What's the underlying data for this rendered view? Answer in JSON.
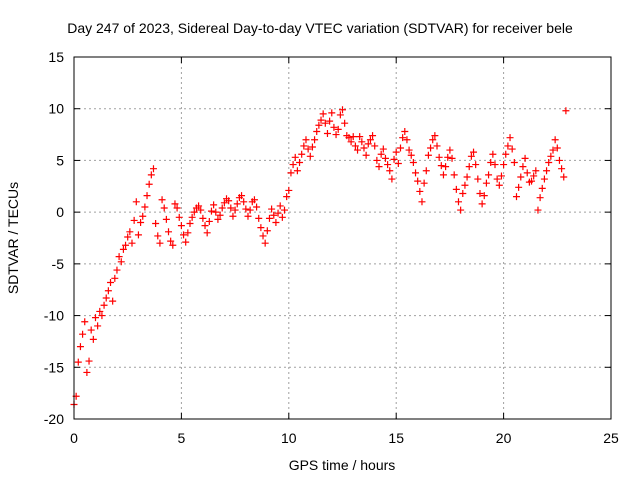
{
  "chart_data": {
    "type": "scatter",
    "title": "Day 247 of 2023, Sidereal Day-to-day VTEC variation (SDTVAR) for receiver bele",
    "xlabel": "GPS time / hours",
    "ylabel": "SDTVAR / TECUs",
    "xlim": [
      0,
      25
    ],
    "ylim": [
      -20,
      15
    ],
    "xticks": [
      0,
      5,
      10,
      15,
      20,
      25
    ],
    "yticks": [
      -20,
      -15,
      -10,
      -5,
      0,
      5,
      10,
      15
    ],
    "xtick_labels": [
      "0",
      "5",
      "10",
      "15",
      "20",
      "25"
    ],
    "ytick_labels": [
      "-20",
      "-15",
      "-10",
      "-5",
      "0",
      "5",
      "10",
      "15"
    ],
    "grid": true,
    "marker": "+",
    "color": "#ff0000",
    "series": [
      {
        "name": "SDTVAR",
        "x": [
          0.0,
          0.1,
          0.2,
          0.3,
          0.4,
          0.5,
          0.6,
          0.7,
          0.8,
          0.9,
          1.0,
          1.1,
          1.2,
          1.3,
          1.4,
          1.5,
          1.6,
          1.7,
          1.8,
          1.9,
          2.0,
          2.1,
          2.2,
          2.3,
          2.4,
          2.5,
          2.6,
          2.7,
          2.8,
          2.9,
          3.0,
          3.1,
          3.2,
          3.3,
          3.4,
          3.5,
          3.6,
          3.7,
          3.8,
          3.9,
          4.0,
          4.1,
          4.2,
          4.3,
          4.4,
          4.5,
          4.6,
          4.7,
          4.8,
          4.9,
          5.0,
          5.1,
          5.2,
          5.3,
          5.4,
          5.5,
          5.6,
          5.7,
          5.8,
          5.9,
          6.0,
          6.1,
          6.2,
          6.3,
          6.4,
          6.5,
          6.6,
          6.7,
          6.8,
          6.9,
          7.0,
          7.1,
          7.2,
          7.3,
          7.4,
          7.5,
          7.6,
          7.7,
          7.8,
          7.9,
          8.0,
          8.1,
          8.2,
          8.3,
          8.4,
          8.5,
          8.6,
          8.7,
          8.8,
          8.9,
          9.0,
          9.1,
          9.2,
          9.3,
          9.4,
          9.5,
          9.6,
          9.7,
          9.8,
          9.9,
          10.0,
          10.1,
          10.2,
          10.3,
          10.4,
          10.5,
          10.6,
          10.7,
          10.8,
          10.9,
          11.0,
          11.1,
          11.2,
          11.3,
          11.4,
          11.5,
          11.6,
          11.7,
          11.8,
          11.9,
          12.0,
          12.1,
          12.2,
          12.3,
          12.4,
          12.5,
          12.6,
          12.7,
          12.8,
          12.9,
          13.0,
          13.1,
          13.2,
          13.3,
          13.4,
          13.5,
          13.6,
          13.7,
          13.8,
          13.9,
          14.0,
          14.1,
          14.2,
          14.3,
          14.4,
          14.5,
          14.6,
          14.7,
          14.8,
          14.9,
          15.0,
          15.1,
          15.2,
          15.3,
          15.4,
          15.5,
          15.6,
          15.7,
          15.8,
          15.9,
          16.0,
          16.1,
          16.2,
          16.3,
          16.4,
          16.5,
          16.6,
          16.7,
          16.8,
          16.9,
          17.0,
          17.1,
          17.2,
          17.3,
          17.4,
          17.5,
          17.6,
          17.7,
          17.8,
          17.9,
          18.0,
          18.1,
          18.2,
          18.3,
          18.4,
          18.5,
          18.6,
          18.7,
          18.8,
          18.9,
          19.0,
          19.1,
          19.2,
          19.3,
          19.4,
          19.5,
          19.6,
          19.7,
          19.8,
          19.9,
          20.0,
          20.1,
          20.2,
          20.3,
          20.4,
          20.5,
          20.6,
          20.7,
          20.8,
          20.9,
          21.0,
          21.1,
          21.2,
          21.3,
          21.4,
          21.5,
          21.6,
          21.7,
          21.8,
          21.9,
          22.0,
          22.1,
          22.2,
          22.3,
          22.4,
          22.5,
          22.6,
          22.7,
          22.8,
          22.9
        ],
        "y": [
          -18.6,
          -17.8,
          -14.5,
          -13.0,
          -11.8,
          -10.6,
          -15.5,
          -14.4,
          -11.4,
          -12.3,
          -10.2,
          -11.0,
          -9.6,
          -10.0,
          -9.0,
          -8.3,
          -7.6,
          -6.8,
          -8.6,
          -6.4,
          -5.6,
          -4.3,
          -4.8,
          -3.6,
          -3.2,
          -2.4,
          -1.9,
          -3.0,
          -0.8,
          1.0,
          -2.2,
          -1.0,
          -0.4,
          0.5,
          1.6,
          2.7,
          3.6,
          4.2,
          -1.1,
          -2.3,
          -3.0,
          1.2,
          0.4,
          -0.7,
          -1.9,
          -2.8,
          -3.2,
          0.8,
          0.4,
          -0.5,
          -1.3,
          -2.2,
          -2.9,
          -2.0,
          -1.1,
          -0.5,
          0.0,
          0.4,
          0.6,
          0.2,
          -0.6,
          -1.3,
          -2.0,
          -0.9,
          0.1,
          0.7,
          0.0,
          -0.7,
          -0.3,
          0.4,
          0.9,
          1.3,
          1.1,
          0.4,
          -0.4,
          0.2,
          0.8,
          1.4,
          1.6,
          1.0,
          0.3,
          -0.4,
          0.2,
          1.0,
          1.2,
          0.5,
          -0.6,
          -1.5,
          -2.3,
          -3.0,
          -1.8,
          -0.6,
          0.3,
          -0.3,
          -1.0,
          -0.1,
          0.6,
          -0.5,
          0.2,
          1.5,
          2.1,
          3.8,
          4.6,
          5.3,
          4.0,
          4.8,
          5.6,
          6.4,
          7.0,
          6.1,
          5.4,
          6.3,
          7.0,
          7.8,
          8.4,
          8.9,
          9.5,
          8.6,
          7.6,
          8.8,
          9.6,
          8.2,
          7.5,
          8.0,
          9.4,
          9.9,
          8.6,
          7.4,
          7.2,
          6.8,
          7.3,
          6.4,
          6.0,
          7.3,
          6.8,
          6.2,
          5.5,
          6.6,
          7.0,
          7.4,
          6.4,
          5.0,
          4.4,
          5.6,
          6.1,
          5.2,
          4.6,
          4.0,
          3.2,
          5.1,
          5.8,
          4.7,
          6.2,
          7.2,
          7.8,
          7.0,
          6.0,
          5.5,
          4.8,
          3.8,
          3.0,
          2.0,
          1.0,
          2.8,
          4.0,
          5.5,
          6.2,
          7.0,
          7.4,
          6.4,
          5.3,
          4.5,
          3.6,
          4.4,
          5.3,
          6.0,
          5.2,
          3.6,
          2.2,
          1.0,
          0.2,
          1.8,
          2.6,
          3.4,
          4.4,
          5.4,
          5.8,
          4.6,
          3.2,
          1.8,
          0.8,
          1.6,
          2.8,
          3.6,
          4.8,
          5.6,
          4.6,
          3.2,
          2.6,
          3.5,
          4.6,
          5.6,
          6.4,
          7.2,
          6.1,
          4.8,
          1.5,
          2.4,
          3.4,
          4.4,
          5.2,
          3.8,
          2.9,
          3.0,
          3.5,
          4.0,
          0.2,
          1.4,
          2.3,
          3.2,
          4.0,
          4.8,
          5.4,
          6.0,
          7.0,
          6.2,
          5.0,
          4.2,
          3.4,
          9.8
        ]
      }
    ]
  }
}
